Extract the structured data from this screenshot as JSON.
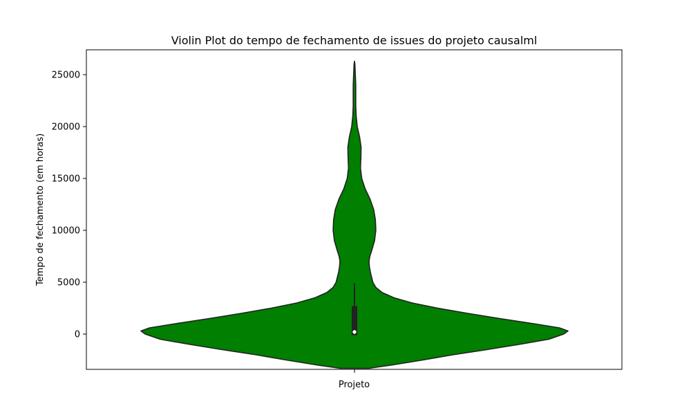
{
  "chart_data": {
    "type": "violin",
    "title": "Violin Plot do tempo de fechamento de issues do projeto causalml",
    "xlabel": "Projeto",
    "ylabel": "Tempo de fechamento (em horas)",
    "ylim": [
      -3400,
      27400
    ],
    "yticks": [
      0,
      5000,
      10000,
      15000,
      20000,
      25000
    ],
    "ytick_labels": [
      "0",
      "5000",
      "10000",
      "15000",
      "20000",
      "25000"
    ],
    "categories": [
      ""
    ],
    "grid": false,
    "violin": {
      "color": "#007f00",
      "edge_color": "#222222",
      "min": -3300,
      "max": 26300,
      "quartiles": {
        "q1": -100,
        "median": 200,
        "q3": 2700
      },
      "whisker": [
        -100,
        4900
      ],
      "density_profile": [
        {
          "y": -3300,
          "w": 0.068
        },
        {
          "y": -3000,
          "w": 0.17
        },
        {
          "y": -2500,
          "w": 0.32
        },
        {
          "y": -2000,
          "w": 0.46
        },
        {
          "y": -1500,
          "w": 0.62
        },
        {
          "y": -1000,
          "w": 0.77
        },
        {
          "y": -500,
          "w": 0.91
        },
        {
          "y": 0,
          "w": 0.98
        },
        {
          "y": 300,
          "w": 1.0
        },
        {
          "y": 600,
          "w": 0.96
        },
        {
          "y": 1000,
          "w": 0.84
        },
        {
          "y": 1500,
          "w": 0.68
        },
        {
          "y": 2000,
          "w": 0.53
        },
        {
          "y": 2500,
          "w": 0.39
        },
        {
          "y": 3000,
          "w": 0.27
        },
        {
          "y": 3500,
          "w": 0.185
        },
        {
          "y": 4000,
          "w": 0.13
        },
        {
          "y": 4500,
          "w": 0.1
        },
        {
          "y": 5000,
          "w": 0.086
        },
        {
          "y": 5500,
          "w": 0.08
        },
        {
          "y": 6000,
          "w": 0.074
        },
        {
          "y": 6500,
          "w": 0.07
        },
        {
          "y": 7000,
          "w": 0.068
        },
        {
          "y": 7500,
          "w": 0.072
        },
        {
          "y": 8000,
          "w": 0.08
        },
        {
          "y": 9000,
          "w": 0.094
        },
        {
          "y": 10000,
          "w": 0.1
        },
        {
          "y": 11000,
          "w": 0.098
        },
        {
          "y": 12000,
          "w": 0.09
        },
        {
          "y": 13000,
          "w": 0.073
        },
        {
          "y": 14000,
          "w": 0.05
        },
        {
          "y": 15000,
          "w": 0.034
        },
        {
          "y": 16000,
          "w": 0.028
        },
        {
          "y": 17000,
          "w": 0.03
        },
        {
          "y": 18000,
          "w": 0.031
        },
        {
          "y": 19000,
          "w": 0.024
        },
        {
          "y": 20000,
          "w": 0.013
        },
        {
          "y": 21000,
          "w": 0.008
        },
        {
          "y": 22000,
          "w": 0.006
        },
        {
          "y": 23000,
          "w": 0.006
        },
        {
          "y": 24000,
          "w": 0.006
        },
        {
          "y": 25000,
          "w": 0.004
        },
        {
          "y": 26000,
          "w": 0.002
        },
        {
          "y": 26300,
          "w": 0.0
        }
      ]
    }
  }
}
